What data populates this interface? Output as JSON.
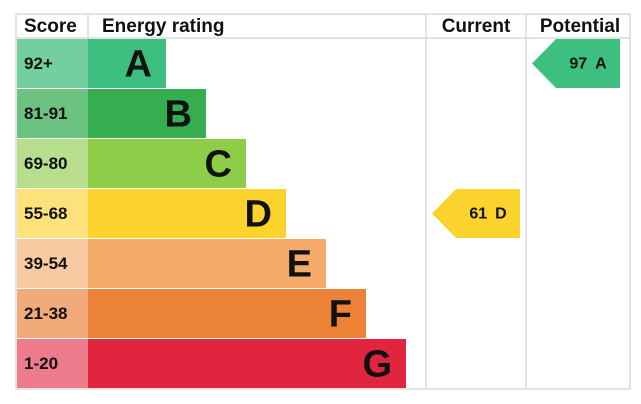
{
  "headers": [
    "Score",
    "Energy rating",
    "Current",
    "Potential"
  ],
  "rows": [
    {
      "score": "92+",
      "rating": "A",
      "color": "#3dbf7f",
      "score_color": "#74cfa0"
    },
    {
      "score": "81-91",
      "rating": "B",
      "color": "#35ae50",
      "score_color": "#6cc280"
    },
    {
      "score": "69-80",
      "rating": "C",
      "color": "#8ecd47",
      "score_color": "#b6de8c"
    },
    {
      "score": "55-68",
      "rating": "D",
      "color": "#fcd22c",
      "score_color": "#fde27c"
    },
    {
      "score": "39-54",
      "rating": "E",
      "color": "#f6ab6b",
      "score_color": "#f9c9a2"
    },
    {
      "score": "21-38",
      "rating": "F",
      "color": "#eb8236",
      "score_color": "#f1aa7a"
    },
    {
      "score": "1-20",
      "rating": "G",
      "color": "#e2253f",
      "score_color": "#ec7c8c"
    }
  ],
  "current": {
    "score": "61",
    "rating": "D"
  },
  "potential": {
    "score": "97",
    "rating": "A"
  }
}
